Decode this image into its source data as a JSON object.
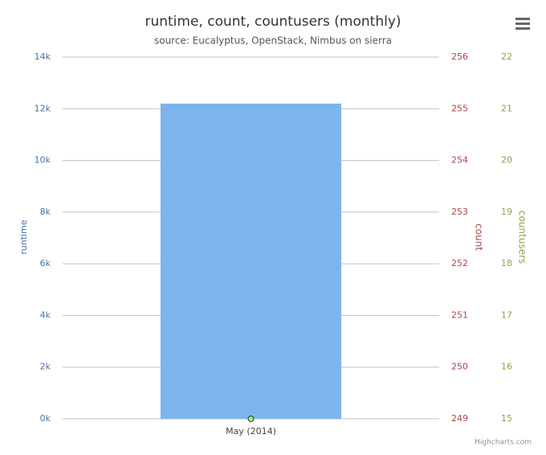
{
  "chart_data": {
    "type": "bar",
    "title": "runtime, count, countusers (monthly)",
    "subtitle": "source: Eucalyptus, OpenStack, Nimbus on sierra",
    "credits": "Highcharts.com",
    "categories": [
      "May (2014)"
    ],
    "series": [
      {
        "name": "runtime",
        "type": "bar",
        "color": "#7cb5ec",
        "values": [
          12200
        ]
      },
      {
        "name": "countusers",
        "type": "point",
        "axis": "y3",
        "color": "#90ed7d",
        "values": [
          15
        ]
      }
    ],
    "ylabel": "runtime",
    "ylim": [
      0,
      14000
    ],
    "yticks": [
      {
        "value": 0,
        "label": "0k"
      },
      {
        "value": 2000,
        "label": "2k"
      },
      {
        "value": 4000,
        "label": "4k"
      },
      {
        "value": 6000,
        "label": "6k"
      },
      {
        "value": 8000,
        "label": "8k"
      },
      {
        "value": 10000,
        "label": "10k"
      },
      {
        "value": 12000,
        "label": "12k"
      },
      {
        "value": 14000,
        "label": "14k"
      }
    ],
    "y2label": "count",
    "y2lim": [
      249,
      256
    ],
    "y2ticks": [
      249,
      250,
      251,
      252,
      253,
      254,
      255,
      256
    ],
    "y3label": "countusers",
    "y3lim": [
      15,
      22
    ],
    "y3ticks": [
      15,
      16,
      17,
      18,
      19,
      20,
      21,
      22
    ],
    "grid": true
  }
}
